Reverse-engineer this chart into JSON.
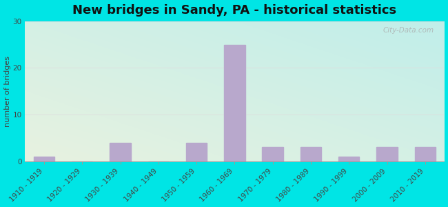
{
  "title": "New bridges in Sandy, PA - historical statistics",
  "ylabel": "number of bridges",
  "categories": [
    "1910 - 1919",
    "1920 - 1929",
    "1930 - 1939",
    "1940 - 1949",
    "1950 - 1959",
    "1960 - 1969",
    "1970 - 1979",
    "1980 - 1989",
    "1990 - 1999",
    "2000 - 2009",
    "2010 - 2019"
  ],
  "values": [
    1,
    0,
    4,
    0,
    4,
    25,
    3,
    3,
    1,
    3,
    3
  ],
  "bar_color": "#b8a8cc",
  "ylim": [
    0,
    30
  ],
  "yticks": [
    0,
    10,
    20,
    30
  ],
  "background_outer": "#00e5e5",
  "bg_top_left": "#e8f0e0",
  "bg_bottom_right": "#c0ecea",
  "title_fontsize": 13,
  "ylabel_fontsize": 8,
  "tick_fontsize": 7.5,
  "watermark": "City-Data.com",
  "grid_color": "#dddddd",
  "figsize": [
    6.5,
    3.0
  ],
  "dpi": 100
}
